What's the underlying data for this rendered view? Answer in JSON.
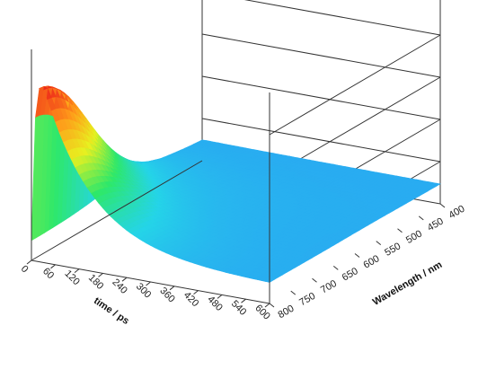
{
  "chart_data": {
    "type": "surface",
    "title": "",
    "x_axis": {
      "label": "time / ps",
      "ticks": [
        0,
        60,
        120,
        180,
        240,
        300,
        360,
        420,
        480,
        540,
        600
      ],
      "range": [
        0,
        600
      ]
    },
    "y_axis": {
      "label": "Wavelength / nm",
      "ticks": [
        400,
        450,
        500,
        550,
        600,
        650,
        700,
        750,
        800
      ],
      "range": [
        400,
        800
      ]
    },
    "z_axis": {
      "label": "",
      "range": [
        0,
        1
      ]
    },
    "colormap": [
      "#1e4fd8",
      "#2a9df4",
      "#25d4e8",
      "#2ee86a",
      "#e8f020",
      "#ff9a1a",
      "#ee2a1a",
      "#c4185e"
    ],
    "peak": {
      "time": 30,
      "wavelength": 800,
      "intensity": 1.0
    },
    "description_of_surface": "Strong signal at early time and long wavelength decaying with time; flat baseline elsewhere",
    "grid": false
  }
}
